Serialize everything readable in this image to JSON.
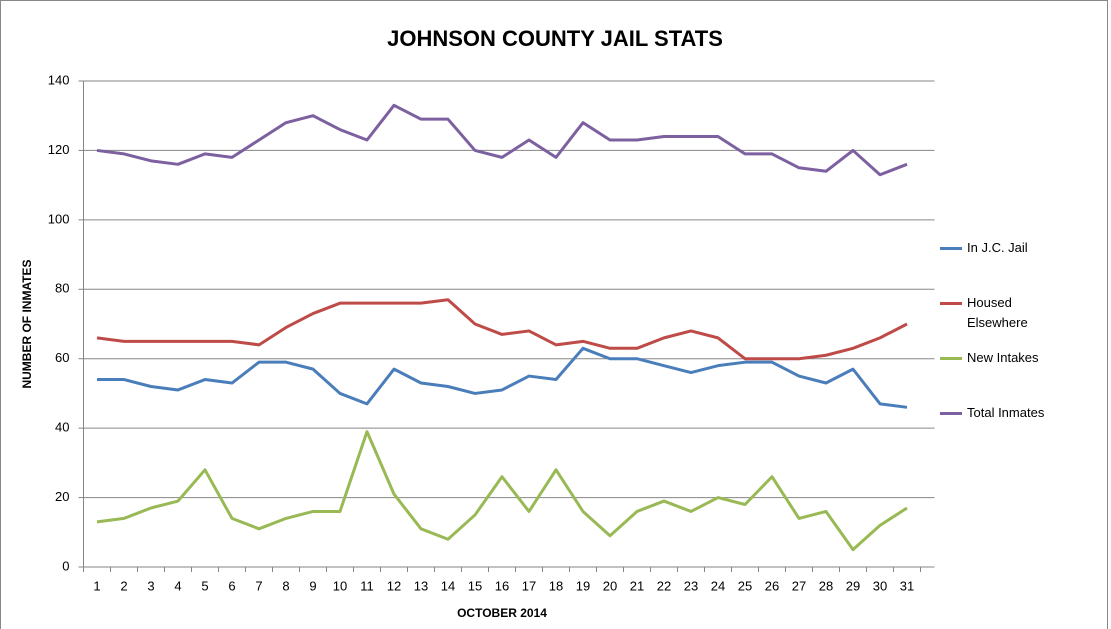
{
  "chart_data": {
    "type": "line",
    "title": "JOHNSON COUNTY JAIL STATS",
    "y_label": "NUMBER OF INMATES",
    "x_label": "OCTOBER 2014",
    "categories": [
      1,
      2,
      3,
      4,
      5,
      6,
      7,
      8,
      9,
      10,
      11,
      12,
      13,
      14,
      15,
      16,
      17,
      18,
      19,
      20,
      21,
      22,
      23,
      24,
      25,
      26,
      27,
      28,
      29,
      30,
      31
    ],
    "series": [
      {
        "name": "In J.C. Jail",
        "color": "#4a7ebb",
        "values": [
          54,
          54,
          52,
          51,
          54,
          53,
          59,
          59,
          57,
          50,
          47,
          57,
          53,
          52,
          50,
          51,
          55,
          54,
          63,
          60,
          60,
          58,
          56,
          58,
          59,
          59,
          55,
          53,
          57,
          47,
          46
        ]
      },
      {
        "name": "Housed Elsewhere",
        "color": "#be4b48",
        "values": [
          66,
          65,
          65,
          65,
          65,
          65,
          64,
          69,
          73,
          76,
          76,
          76,
          76,
          77,
          70,
          67,
          68,
          64,
          65,
          63,
          63,
          66,
          68,
          66,
          60,
          60,
          60,
          61,
          63,
          66,
          70
        ]
      },
      {
        "name": "New Intakes",
        "color": "#98b954",
        "values": [
          13,
          14,
          17,
          19,
          28,
          14,
          11,
          14,
          16,
          16,
          39,
          21,
          11,
          8,
          15,
          26,
          16,
          28,
          16,
          9,
          16,
          19,
          16,
          20,
          18,
          26,
          14,
          16,
          5,
          12,
          17
        ]
      },
      {
        "name": "Total Inmates",
        "color": "#7d60a0",
        "values": [
          120,
          119,
          117,
          116,
          119,
          118,
          123,
          128,
          130,
          126,
          123,
          133,
          129,
          129,
          120,
          118,
          123,
          118,
          128,
          123,
          123,
          124,
          124,
          124,
          119,
          119,
          115,
          114,
          120,
          113,
          116
        ]
      }
    ],
    "ylim": [
      0,
      140
    ],
    "yticks": [
      0,
      20,
      40,
      60,
      80,
      100,
      120,
      140
    ],
    "grid": true,
    "legend": "right"
  }
}
